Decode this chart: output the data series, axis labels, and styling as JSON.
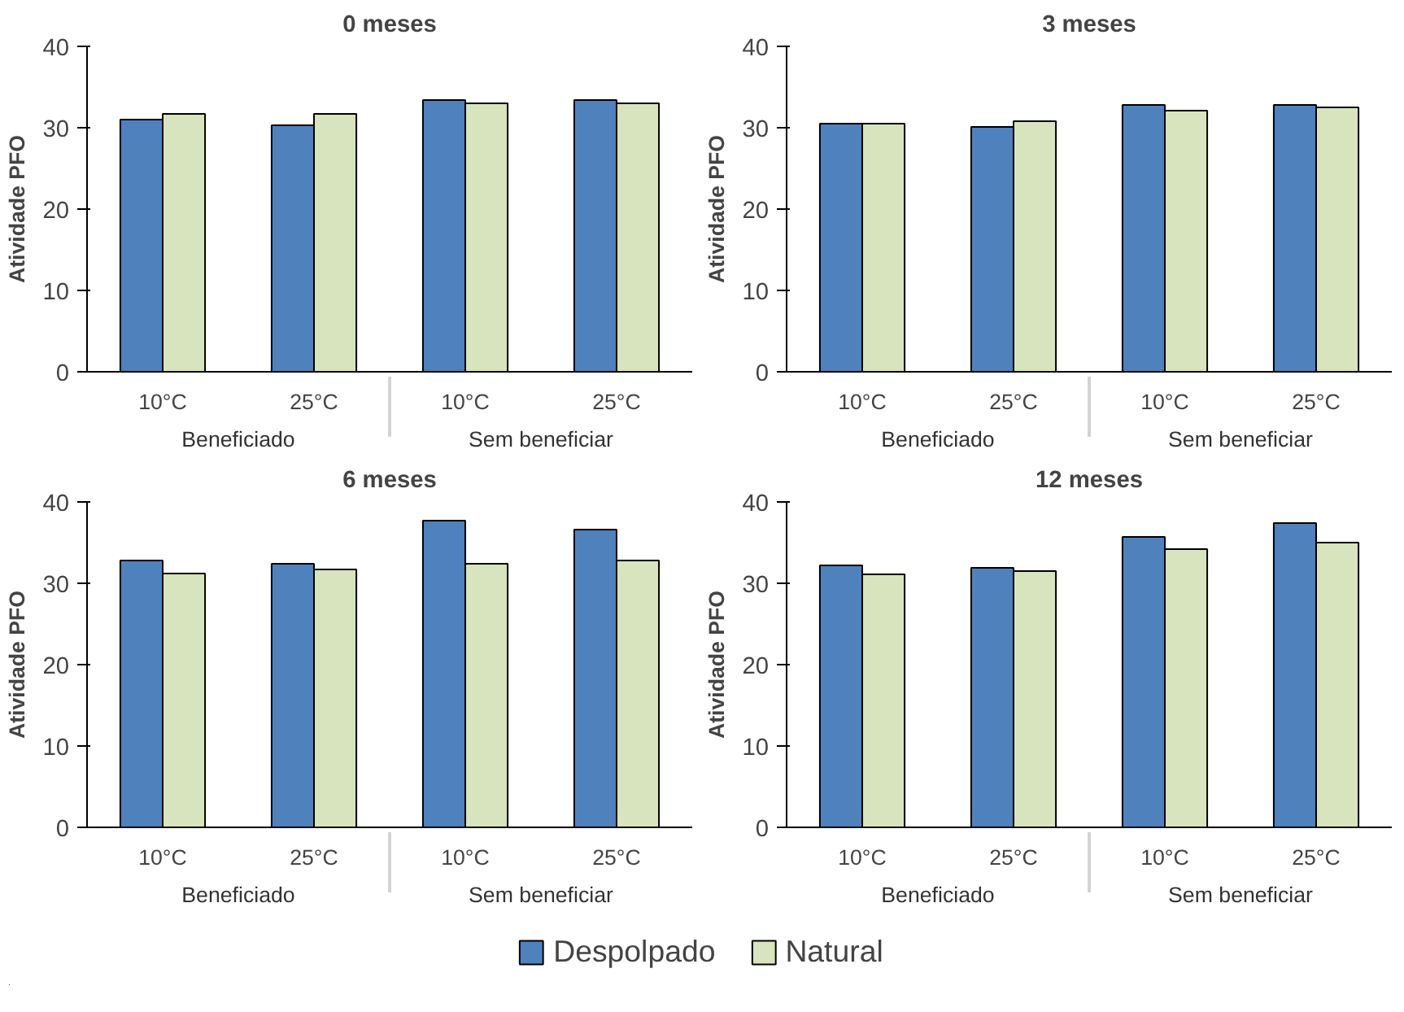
{
  "chart_data": [
    {
      "type": "bar",
      "title": "0 meses",
      "ylabel": "Atividade PFO",
      "categories": [
        "10°C",
        "25°C",
        "10°C",
        "25°C"
      ],
      "annotations": [
        "Beneficiado",
        "Sem beneficiar"
      ],
      "ylim": [
        0,
        40
      ],
      "yticks": [
        0,
        10,
        20,
        30,
        40
      ],
      "grid": false,
      "series": [
        {
          "color": "#4f81bd",
          "values": [
            31.0,
            30.3,
            33.4,
            33.4
          ]
        },
        {
          "color": "#d7e4bd",
          "values": [
            31.7,
            31.7,
            33.0,
            33.0
          ]
        }
      ]
    },
    {
      "type": "bar",
      "title": "3 meses",
      "ylabel": "Atividade PFO",
      "categories": [
        "10°C",
        "25°C",
        "10°C",
        "25°C"
      ],
      "annotations": [
        "Beneficiado",
        "Sem beneficiar"
      ],
      "ylim": [
        0,
        40
      ],
      "yticks": [
        0,
        10,
        20,
        30,
        40
      ],
      "grid": false,
      "series": [
        {
          "color": "#4f81bd",
          "values": [
            30.5,
            30.1,
            32.8,
            32.8
          ]
        },
        {
          "color": "#d7e4bd",
          "values": [
            30.5,
            30.8,
            32.1,
            32.5
          ]
        }
      ]
    },
    {
      "type": "bar",
      "title": "6 meses",
      "ylabel": "Atividade PFO",
      "categories": [
        "10°C",
        "25°C",
        "10°C",
        "25°C"
      ],
      "annotations": [
        "Beneficiado",
        "Sem beneficiar"
      ],
      "ylim": [
        0,
        40
      ],
      "yticks": [
        0,
        10,
        20,
        30,
        40
      ],
      "grid": false,
      "series": [
        {
          "color": "#4f81bd",
          "values": [
            32.8,
            32.4,
            37.7,
            36.6
          ]
        },
        {
          "color": "#d7e4bd",
          "values": [
            31.2,
            31.7,
            32.4,
            32.8
          ]
        }
      ]
    },
    {
      "type": "bar",
      "title": "12 meses",
      "ylabel": "Atividade PFO",
      "categories": [
        "10°C",
        "25°C",
        "10°C",
        "25°C"
      ],
      "annotations": [
        "Beneficiado",
        "Sem beneficiar"
      ],
      "ylim": [
        0,
        40
      ],
      "yticks": [
        0,
        10,
        20,
        30,
        40
      ],
      "grid": false,
      "legend": "bottom",
      "series": [
        {
          "name": "Despolpado",
          "color": "#4f81bd",
          "values": [
            32.2,
            31.9,
            35.7,
            37.4
          ]
        },
        {
          "name": "Natural",
          "color": "#d7e4bd",
          "values": [
            31.1,
            31.5,
            34.2,
            35.0
          ]
        }
      ]
    }
  ]
}
